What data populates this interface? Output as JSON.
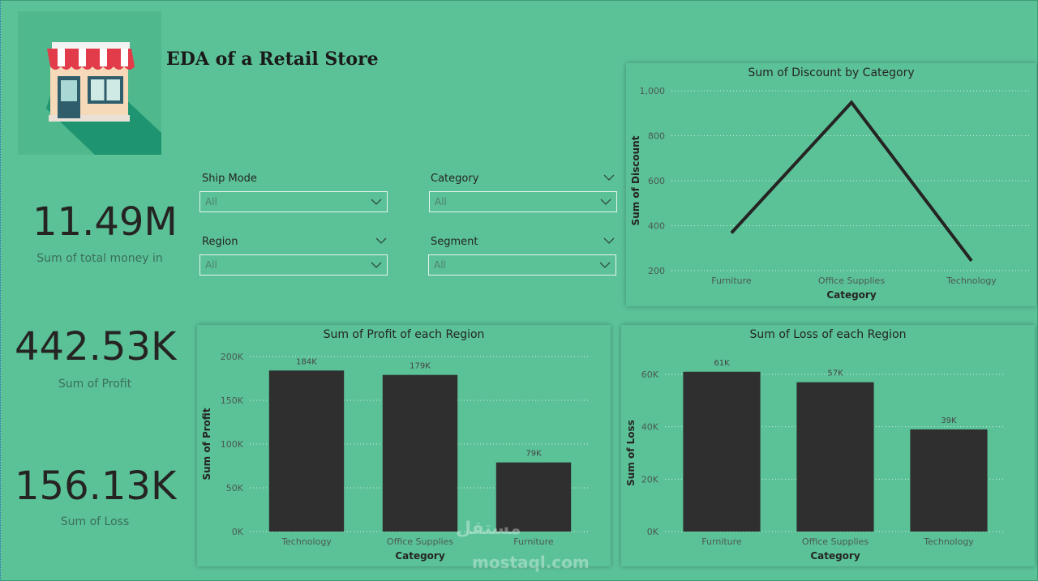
{
  "header": {
    "title": "EDA of a Retail Store",
    "logo": "store-icon"
  },
  "kpis": [
    {
      "value": "11.49M",
      "label": "Sum of total money in"
    },
    {
      "value": "442.53K",
      "label": "Sum of Profit"
    },
    {
      "value": "156.13K",
      "label": "Sum of Loss"
    }
  ],
  "slicers": [
    {
      "label": "Ship Mode",
      "value": "All"
    },
    {
      "label": "Category",
      "value": "All"
    },
    {
      "label": "Region",
      "value": "All"
    },
    {
      "label": "Segment",
      "value": "All"
    }
  ],
  "chart_data": [
    {
      "type": "line",
      "title": "Sum of Discount by Category",
      "xlabel": "Category",
      "ylabel": "Sum of Discount",
      "categories": [
        "Furniture",
        "Office Supplies",
        "Technology"
      ],
      "values": [
        368,
        948,
        244
      ],
      "ylim": [
        200,
        1000
      ],
      "yticks": [
        "200",
        "400",
        "600",
        "800",
        "1,000"
      ],
      "grid": true,
      "color": "#252423"
    },
    {
      "type": "bar",
      "title": "Sum of Profit of each Region",
      "xlabel": "Category",
      "ylabel": "Sum of Profit",
      "categories": [
        "Technology",
        "Office Supplies",
        "Furniture"
      ],
      "values": [
        184000,
        179000,
        79000
      ],
      "data_labels": [
        "184K",
        "179K",
        "79K"
      ],
      "ylim": [
        0,
        200000
      ],
      "yticks": [
        "0K",
        "50K",
        "100K",
        "150K",
        "200K"
      ],
      "grid": true,
      "color": "#2f2f2f"
    },
    {
      "type": "bar",
      "title": "Sum of Loss of each Region",
      "xlabel": "Category",
      "ylabel": "Sum of Loss",
      "categories": [
        "Furniture",
        "Office Supplies",
        "Technology"
      ],
      "values": [
        61000,
        57000,
        39000
      ],
      "data_labels": [
        "61K",
        "57K",
        "39K"
      ],
      "ylim": [
        0,
        60000
      ],
      "yticks": [
        "0K",
        "20K",
        "40K",
        "60K"
      ],
      "grid": true,
      "color": "#2f2f2f"
    }
  ],
  "watermark": {
    "arabic": "مستقل",
    "latin": "mostaql.com"
  }
}
